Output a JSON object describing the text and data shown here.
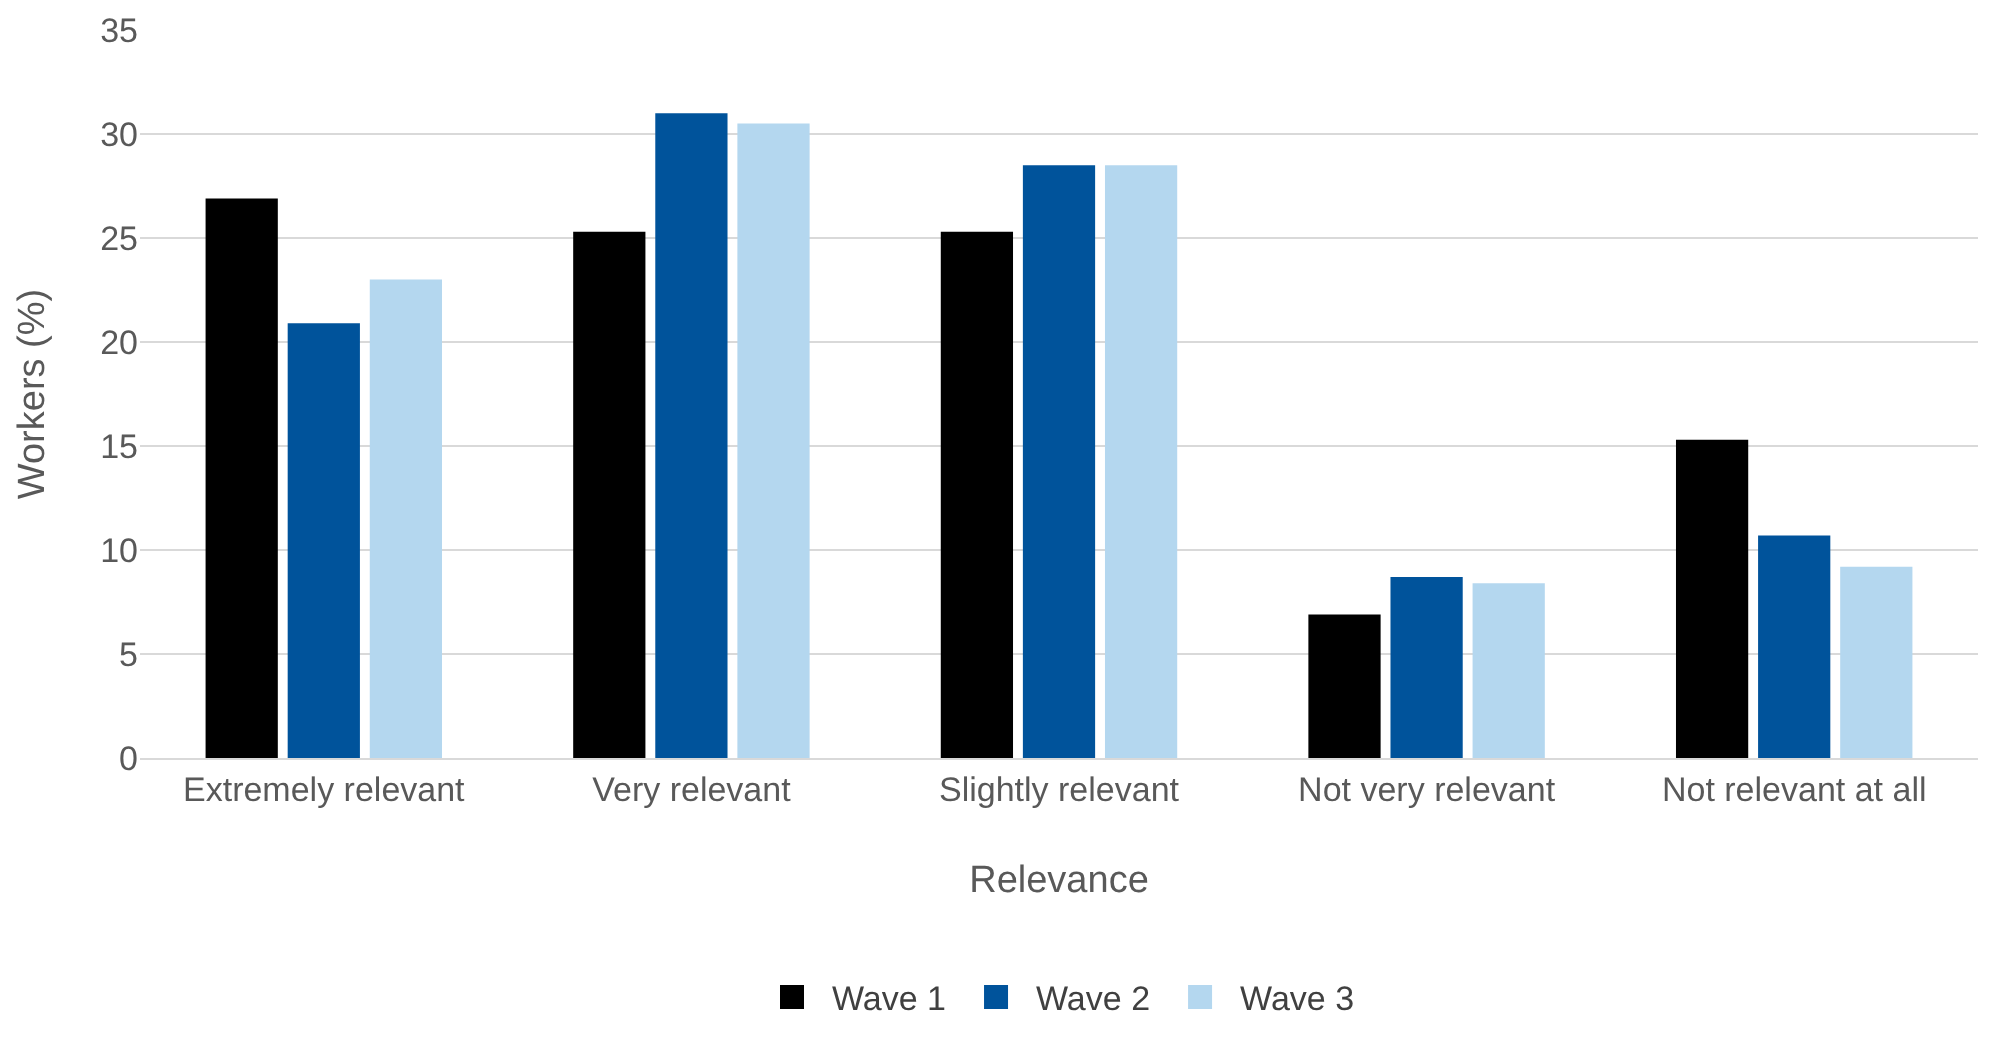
{
  "chart_data": {
    "type": "bar",
    "xlabel": "Relevance",
    "ylabel": "Workers (%)",
    "categories": [
      "Extremely relevant",
      "Very relevant",
      "Slightly relevant",
      "Not very relevant",
      "Not relevant at all"
    ],
    "series": [
      {
        "name": "Wave 1",
        "color": "#000000",
        "values": [
          26.9,
          25.3,
          25.3,
          6.9,
          15.3
        ]
      },
      {
        "name": "Wave 2",
        "color": "#00539b",
        "values": [
          20.9,
          31.0,
          28.5,
          8.7,
          10.7
        ]
      },
      {
        "name": "Wave 3",
        "color": "#b4d7ef",
        "values": [
          23.0,
          30.5,
          28.5,
          8.4,
          9.2
        ]
      }
    ],
    "ylim": [
      0,
      35
    ],
    "yticks": [
      0,
      5,
      10,
      15,
      20,
      25,
      30,
      35
    ],
    "grid": "y",
    "legend": "bottom"
  }
}
